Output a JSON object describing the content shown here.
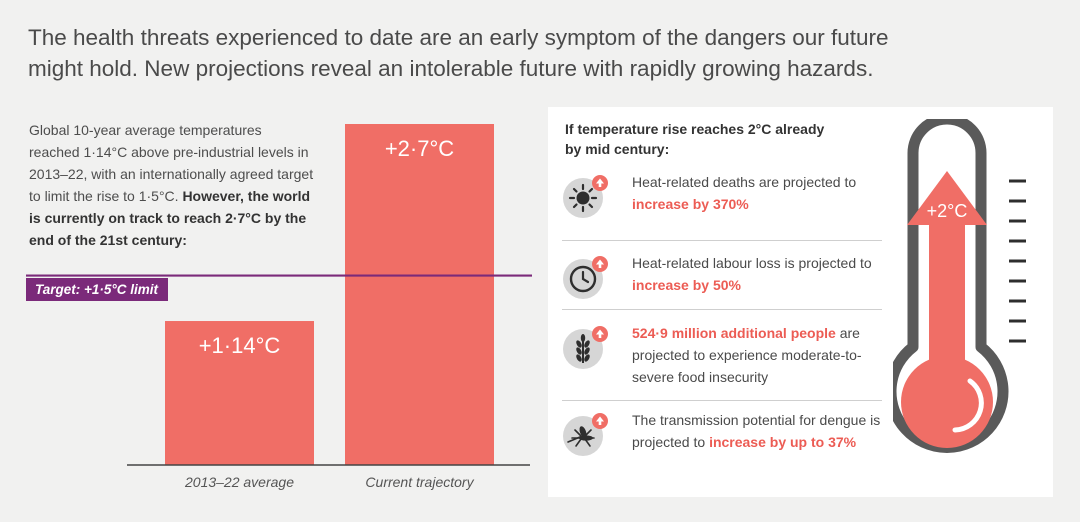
{
  "headline": "The health threats experienced to date are an early symptom of the dangers our future might hold. New projections reveal an intolerable future with rapidly growing hazards.",
  "intro": {
    "normal": "Global 10-year average temperatures reached 1·14°C above pre-industrial levels in 2013–22, with an internationally agreed target to limit the rise to 1·5°C.",
    "bold": "However, the world is currently on track to reach 2·7°C by the end of the 21st century:"
  },
  "chart_data": {
    "type": "bar",
    "categories": [
      "2013–22 average",
      "Current trajectory"
    ],
    "values": [
      1.14,
      2.7
    ],
    "value_labels": [
      "+1·14°C",
      "+2·7°C"
    ],
    "reference_line": {
      "value": 1.5,
      "label": "Target: +1·5°C limit",
      "color": "#7b2a7a"
    },
    "ylim": [
      0,
      2.7
    ],
    "bar_color": "#f06e66"
  },
  "panel": {
    "title": "If temperature rise reaches 2°C already by mid century:",
    "items": [
      {
        "icon": "sun-icon",
        "parts": [
          {
            "t": "Heat-related deaths are projected to ",
            "hl": false
          },
          {
            "t": "increase by 370%",
            "hl": true
          }
        ]
      },
      {
        "icon": "clock-icon",
        "parts": [
          {
            "t": "Heat-related labour loss is projected to ",
            "hl": false
          },
          {
            "t": "increase by 50%",
            "hl": true
          }
        ]
      },
      {
        "icon": "wheat-icon",
        "parts": [
          {
            "t": "524·9 million additional people",
            "hl": true
          },
          {
            "t": " are projected to experience moderate-to-severe food insecurity",
            "hl": false
          }
        ]
      },
      {
        "icon": "mosquito-icon",
        "parts": [
          {
            "t": "The transmission potential for dengue is projected to ",
            "hl": false
          },
          {
            "t": "increase by up to 37%",
            "hl": true
          }
        ]
      }
    ],
    "thermometer_label": "+2°C"
  },
  "colors": {
    "accent": "#f06e66",
    "highlight_text": "#ec5c54",
    "target": "#7b2a7a",
    "thermometer_outline": "#5a5a5a"
  }
}
